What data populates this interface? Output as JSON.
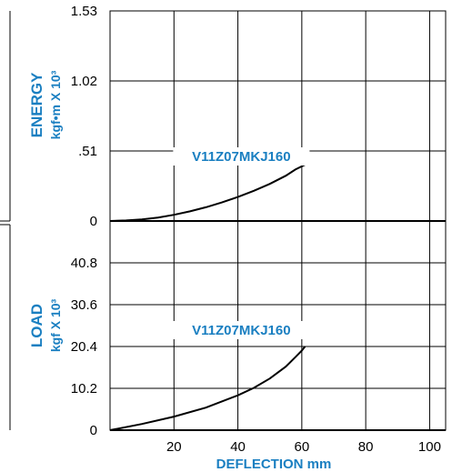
{
  "colors": {
    "accent": "#1a7fc1",
    "grid": "#000000",
    "curve": "#000000"
  },
  "chart_data": [
    {
      "type": "line",
      "panel": "top",
      "ylabel": "ENERGY",
      "ylabel_unit": "kgf•m X 10³",
      "y_ticks": [
        "0",
        ".51",
        "1.02",
        "1.53"
      ],
      "y_tick_values": [
        0,
        0.51,
        1.02,
        1.53
      ],
      "ylim": [
        0,
        1.53
      ],
      "xlim": [
        0,
        105
      ],
      "series": [
        {
          "name": "V11Z07MKJ160",
          "x": [
            0,
            5,
            10,
            15,
            20,
            25,
            30,
            35,
            40,
            45,
            50,
            55,
            58,
            61
          ],
          "y": [
            0,
            0.004,
            0.012,
            0.025,
            0.045,
            0.07,
            0.1,
            0.135,
            0.175,
            0.22,
            0.27,
            0.33,
            0.375,
            0.41
          ]
        }
      ],
      "grid": true
    },
    {
      "type": "line",
      "panel": "bottom",
      "ylabel": "LOAD",
      "ylabel_unit": "kgf X 10³",
      "y_ticks": [
        "0",
        "10.2",
        "20.4",
        "30.6",
        "40.8"
      ],
      "y_tick_values": [
        0,
        10.2,
        20.4,
        30.6,
        40.8
      ],
      "ylim": [
        0,
        51
      ],
      "xlim": [
        0,
        105
      ],
      "xlabel": "DEFLECTION mm",
      "x_ticks": [
        "20",
        "40",
        "60",
        "80",
        "100"
      ],
      "x_tick_values": [
        20,
        40,
        60,
        80,
        100
      ],
      "series": [
        {
          "name": "V11Z07MKJ160",
          "x": [
            0,
            10,
            20,
            30,
            40,
            45,
            50,
            55,
            58,
            60,
            61
          ],
          "y": [
            0,
            1.5,
            3.3,
            5.5,
            8.5,
            10.3,
            12.6,
            15.5,
            17.8,
            19.4,
            20.4
          ]
        }
      ],
      "grid": true
    }
  ]
}
